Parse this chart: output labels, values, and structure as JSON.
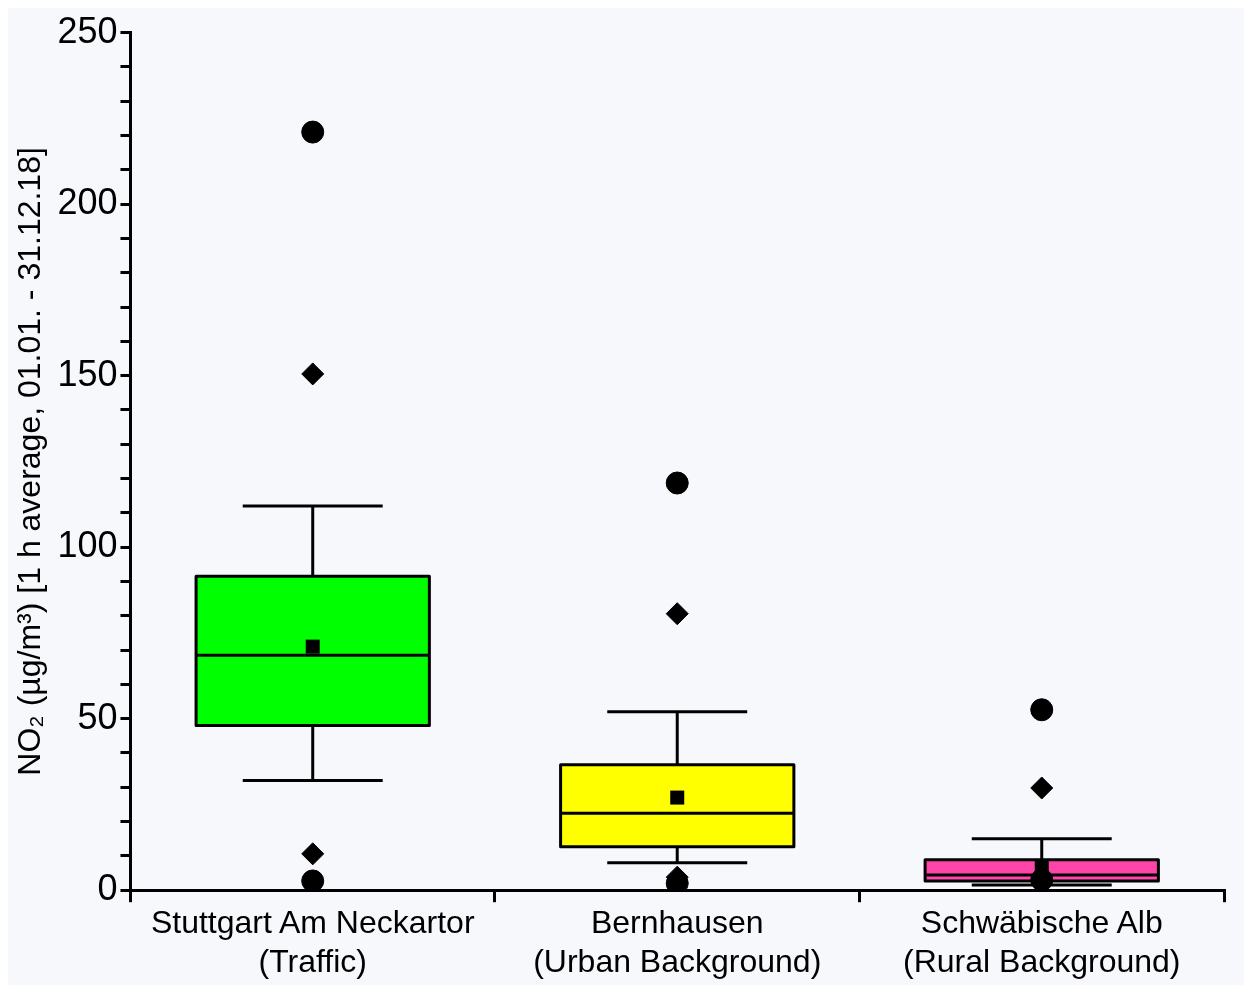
{
  "chart_data": {
    "type": "box",
    "ylabel": "NO₂ (µg/m³) [1 h average, 01.01. - 31.12.18]",
    "categories": [
      "Stuttgart Am Neckartor\n(Traffic)",
      "Bernhausen\n(Urban Background)",
      "Schwäbische Alb\n(Rural Background)"
    ],
    "colors": [
      "#00ff00",
      "#ffff00",
      "#ff44aa"
    ],
    "boxes": [
      {
        "low": 32,
        "q1": 48,
        "median": 68.5,
        "q3": 91.5,
        "high": 112,
        "mean": 71
      },
      {
        "low": 8,
        "q1": 12.7,
        "median": 22.4,
        "q3": 36.6,
        "high": 52,
        "mean": 27
      },
      {
        "low": 1.5,
        "q1": 2.7,
        "median": 4.4,
        "q3": 8.9,
        "high": 15,
        "mean": 7
      }
    ],
    "series": [
      {
        "type": "scatter",
        "marker": "diamond",
        "color": "#000000",
        "x": [
          "Stuttgart Am Neckartor\n(Traffic)",
          "Stuttgart Am Neckartor\n(Traffic)",
          "Bernhausen\n(Urban Background)",
          "Bernhausen\n(Urban Background)",
          "Schwäbische Alb\n(Rural Background)",
          "Schwäbische Alb\n(Rural Background)"
        ],
        "values": [
          150.5,
          10.6,
          80.6,
          3.8,
          29.8,
          null
        ]
      },
      {
        "type": "scatter",
        "marker": "circle",
        "color": "#000000",
        "x": [
          "Stuttgart Am Neckartor\n(Traffic)",
          "Stuttgart Am Neckartor\n(Traffic)",
          "Bernhausen\n(Urban Background)",
          "Bernhausen\n(Urban Background)",
          "Schwäbische Alb\n(Rural Background)",
          "Schwäbische Alb\n(Rural Background)"
        ],
        "values": [
          221,
          2.7,
          118.7,
          2,
          52.6,
          3
        ]
      }
    ],
    "ylim": [
      0,
      250
    ],
    "yticks": [
      0,
      {
        "value": 10,
        "label": null
      },
      {
        "value": 20,
        "label": null
      },
      {
        "value": 30,
        "label": null
      },
      {
        "value": 40,
        "label": null
      },
      50,
      {
        "value": 60,
        "label": null
      },
      {
        "value": 70,
        "label": null
      },
      {
        "value": 80,
        "label": null
      },
      {
        "value": 90,
        "label": null
      },
      100,
      {
        "value": 110,
        "label": null
      },
      {
        "value": 120,
        "label": null
      },
      {
        "value": 130,
        "label": null
      },
      {
        "value": 140,
        "label": null
      },
      150,
      {
        "value": 160,
        "label": null
      },
      {
        "value": 170,
        "label": null
      },
      {
        "value": 180,
        "label": null
      },
      {
        "value": 190,
        "label": null
      },
      200,
      {
        "value": 210,
        "label": null
      },
      {
        "value": 220,
        "label": null
      },
      {
        "value": 230,
        "label": null
      },
      {
        "value": 240,
        "label": null
      },
      250
    ],
    "grid": false,
    "legend": false
  }
}
